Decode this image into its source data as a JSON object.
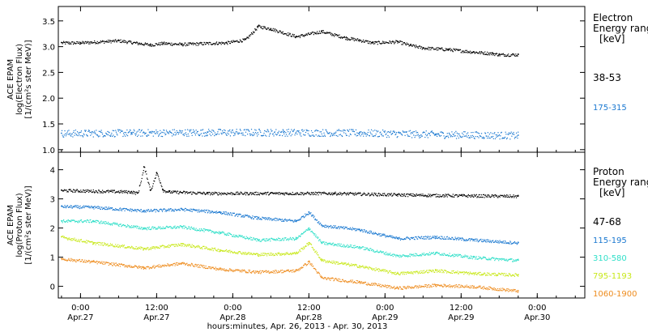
{
  "chart_data": [
    {
      "type": "scatter",
      "panel": "electron",
      "ylabel_lines": [
        "ACE EPAM",
        "log(Electron Flux)",
        "[1/(cm²s ster MeV)]"
      ],
      "ylim": [
        0.95,
        3.78
      ],
      "yticks": [
        1.0,
        1.5,
        2.0,
        2.5,
        3.0,
        3.5
      ],
      "ytick_labels": [
        "1.0",
        "1.5",
        "2.0",
        "2.5",
        "3.0",
        "3.5"
      ],
      "legend_title_lines": [
        "Electron",
        "Energy range",
        "[keV]"
      ],
      "legend_position": "right",
      "series": [
        {
          "name": "38-53",
          "color": "#000000",
          "x": [
            -3,
            0,
            6,
            11,
            13,
            16,
            20,
            23,
            26,
            28,
            30,
            34,
            38,
            42,
            44,
            46,
            50,
            52,
            54,
            58,
            62,
            65,
            66,
            69
          ],
          "y": [
            3.08,
            3.08,
            3.12,
            3.04,
            3.07,
            3.05,
            3.07,
            3.08,
            3.14,
            3.4,
            3.35,
            3.2,
            3.3,
            3.17,
            3.13,
            3.08,
            3.1,
            3.03,
            2.98,
            2.95,
            2.9,
            2.87,
            2.85,
            2.85
          ]
        },
        {
          "name": "175-315",
          "color": "#1a78d0",
          "x": [
            -3,
            8,
            20,
            32,
            44,
            56,
            69
          ],
          "y": [
            1.32,
            1.33,
            1.34,
            1.34,
            1.33,
            1.3,
            1.28
          ]
        }
      ]
    },
    {
      "type": "scatter",
      "panel": "proton",
      "ylabel_lines": [
        "ACE EPAM",
        "log(Proton Flux)",
        "[1/(cm²s ster MeV)]"
      ],
      "ylim": [
        -0.4,
        4.6
      ],
      "yticks": [
        0,
        1,
        2,
        3,
        4
      ],
      "ytick_labels": [
        "0",
        "1",
        "2",
        "3",
        "4"
      ],
      "legend_title_lines": [
        "Proton",
        "Energy range",
        "[keV]"
      ],
      "legend_position": "right",
      "series": [
        {
          "name": "47-68",
          "color": "#000000",
          "x": [
            -3,
            8,
            9,
            10,
            11,
            12,
            13,
            14,
            20,
            30,
            40,
            50,
            60,
            69
          ],
          "y": [
            3.3,
            3.25,
            3.2,
            4.1,
            3.3,
            3.9,
            3.3,
            3.25,
            3.2,
            3.2,
            3.2,
            3.15,
            3.12,
            3.1
          ]
        },
        {
          "name": "115-195",
          "color": "#1a78d0",
          "x": [
            -3,
            2,
            10,
            16,
            22,
            28,
            34,
            36,
            38,
            44,
            50,
            56,
            62,
            69
          ],
          "y": [
            2.75,
            2.72,
            2.6,
            2.65,
            2.55,
            2.35,
            2.25,
            2.55,
            2.1,
            1.95,
            1.65,
            1.7,
            1.6,
            1.5
          ]
        },
        {
          "name": "310-580",
          "color": "#2fdfc8",
          "x": [
            -3,
            2,
            10,
            16,
            22,
            28,
            34,
            36,
            38,
            44,
            50,
            56,
            62,
            69
          ],
          "y": [
            2.25,
            2.25,
            2.0,
            2.05,
            1.85,
            1.6,
            1.65,
            2.0,
            1.5,
            1.35,
            1.05,
            1.15,
            1.0,
            0.9
          ]
        },
        {
          "name": "795-1193",
          "color": "#c8e81a",
          "x": [
            -3,
            2,
            10,
            16,
            22,
            28,
            34,
            36,
            38,
            44,
            50,
            56,
            62,
            69
          ],
          "y": [
            1.7,
            1.5,
            1.3,
            1.45,
            1.25,
            1.1,
            1.15,
            1.5,
            0.9,
            0.7,
            0.45,
            0.55,
            0.45,
            0.4
          ]
        },
        {
          "name": "1060-1900",
          "color": "#ee8c1e",
          "x": [
            -3,
            2,
            10,
            16,
            22,
            28,
            34,
            36,
            38,
            44,
            50,
            56,
            62,
            69
          ],
          "y": [
            0.95,
            0.85,
            0.65,
            0.8,
            0.6,
            0.5,
            0.55,
            0.85,
            0.3,
            0.15,
            -0.05,
            0.05,
            0.0,
            -0.15
          ]
        }
      ]
    }
  ],
  "xaxis": {
    "xlim": [
      -3.5,
      79.5
    ],
    "ticks": [
      0,
      12,
      24,
      36,
      48,
      60,
      72
    ],
    "tick_labels_time": [
      "0:00",
      "12:00",
      "0:00",
      "12:00",
      "0:00",
      "12:00",
      "0:00"
    ],
    "tick_labels_date": [
      "Apr.27",
      "Apr.27",
      "Apr.28",
      "Apr.28",
      "Apr.29",
      "Apr.29",
      "Apr.30"
    ],
    "xlabel": "hours:minutes, Apr. 26, 2013 - Apr. 30, 2013"
  }
}
